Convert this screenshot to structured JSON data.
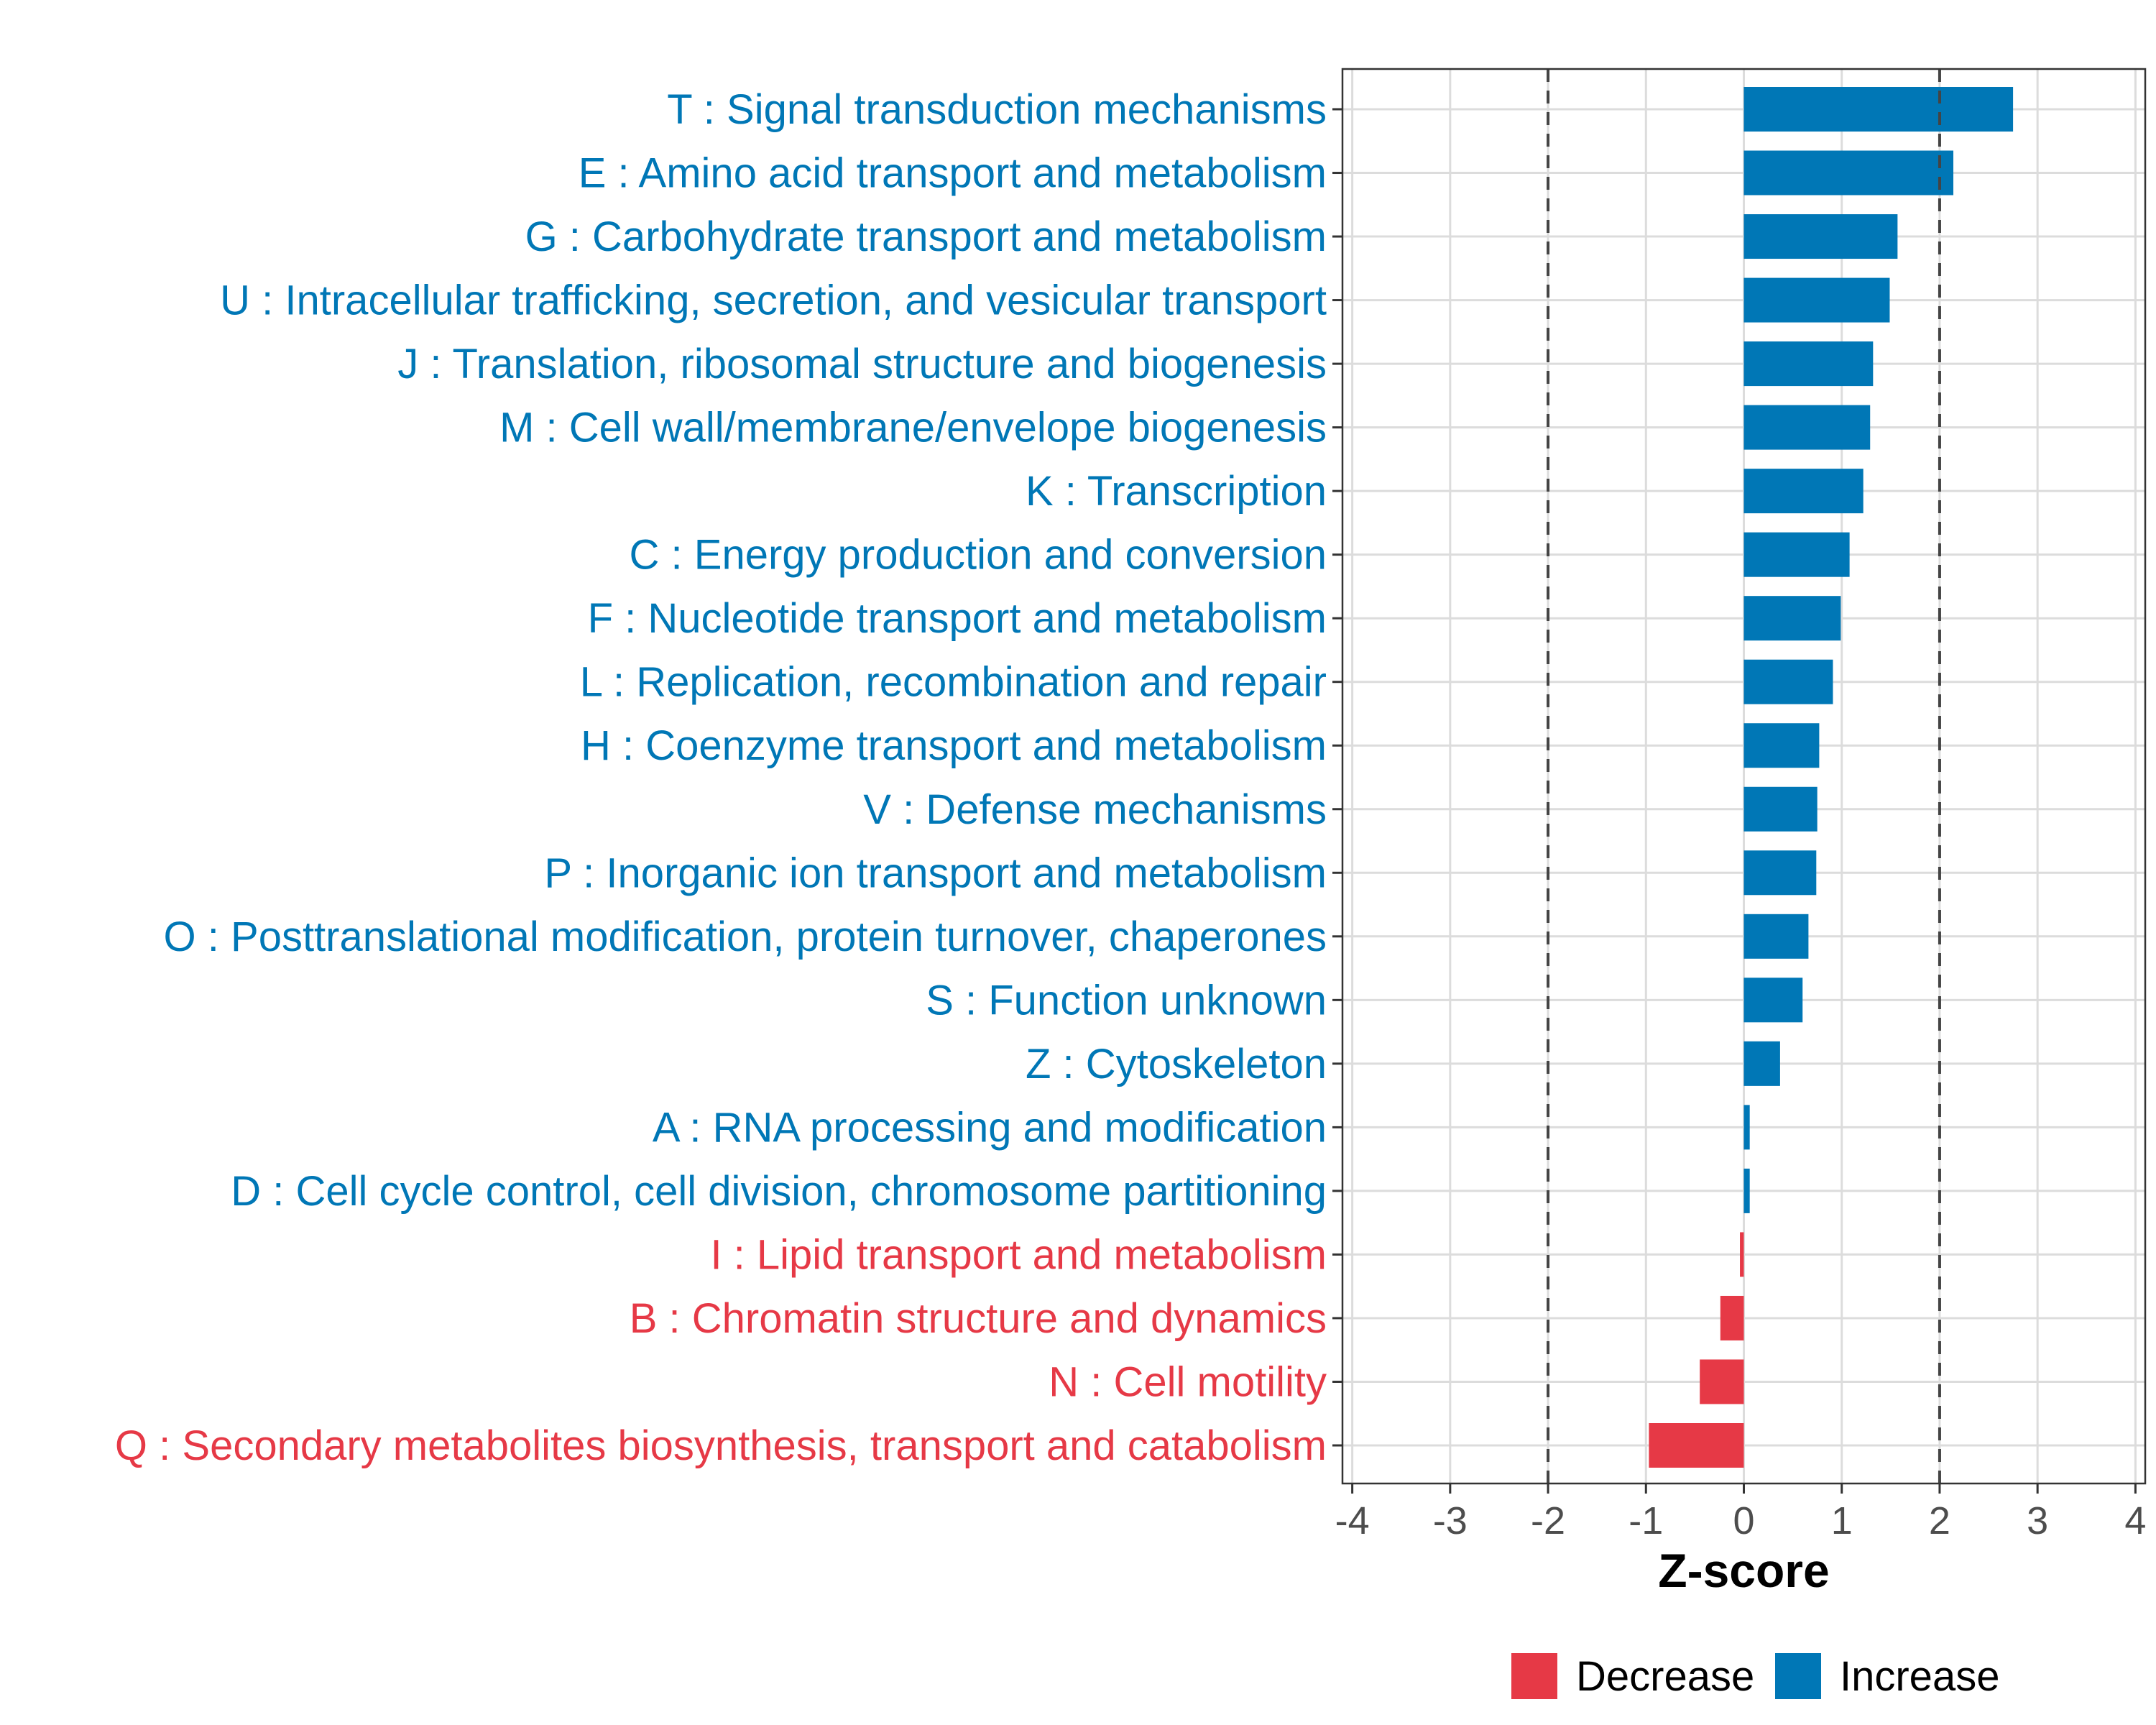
{
  "chart_data": {
    "type": "bar",
    "orientation": "horizontal",
    "xlabel": "Z-score",
    "ylabel": "",
    "xlim": [
      -4.1,
      4.1
    ],
    "xticks": [
      -4,
      -3,
      -2,
      -1,
      0,
      1,
      2,
      3,
      4
    ],
    "reference_lines": [
      -2,
      2
    ],
    "grid": true,
    "legend_position": "bottom",
    "legend": [
      {
        "name": "Decrease",
        "color": "#E63946"
      },
      {
        "name": "Increase",
        "color": "#0077B6"
      }
    ],
    "categories": [
      "T : Signal transduction mechanisms",
      "E : Amino acid transport and metabolism",
      "G : Carbohydrate transport and metabolism",
      "U : Intracellular trafficking, secretion, and vesicular transport",
      "J : Translation, ribosomal structure and biogenesis",
      "M : Cell wall/membrane/envelope biogenesis",
      "K : Transcription",
      "C : Energy production and conversion",
      "F : Nucleotide transport and metabolism",
      "L : Replication, recombination and repair",
      "H : Coenzyme transport and metabolism",
      "V : Defense mechanisms",
      "P : Inorganic ion transport and metabolism",
      "O : Posttranslational modification, protein turnover, chaperones",
      "S : Function unknown",
      "Z : Cytoskeleton",
      "A : RNA processing and modification",
      "D : Cell cycle control, cell division, chromosome partitioning",
      "I : Lipid transport and metabolism",
      "B : Chromatin structure and dynamics",
      "N : Cell motility",
      "Q : Secondary metabolites biosynthesis, transport and catabolism"
    ],
    "values": [
      2.75,
      2.14,
      1.57,
      1.49,
      1.32,
      1.29,
      1.22,
      1.08,
      0.99,
      0.91,
      0.77,
      0.75,
      0.74,
      0.66,
      0.6,
      0.37,
      0.06,
      0.06,
      -0.04,
      -0.24,
      -0.45,
      -0.97
    ],
    "groups": [
      "Increase",
      "Increase",
      "Increase",
      "Increase",
      "Increase",
      "Increase",
      "Increase",
      "Increase",
      "Increase",
      "Increase",
      "Increase",
      "Increase",
      "Increase",
      "Increase",
      "Increase",
      "Increase",
      "Increase",
      "Increase",
      "Decrease",
      "Decrease",
      "Decrease",
      "Decrease"
    ]
  }
}
